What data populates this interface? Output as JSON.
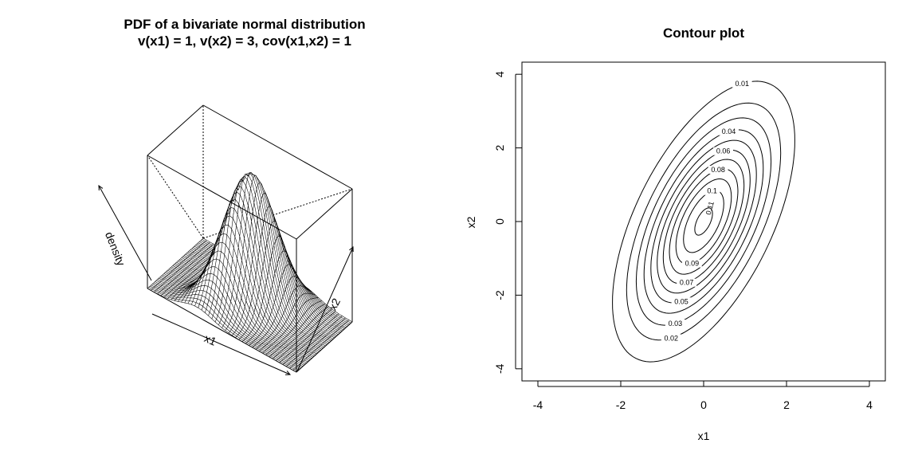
{
  "chart_data": [
    {
      "type": "surface",
      "title_line1": "PDF of a bivariate normal distribution",
      "title_line2": "v(x1) = 1, v(x2) = 3, cov(x1,x2) = 1",
      "xlabel": "x1",
      "ylabel": "x2",
      "zlabel": "density",
      "distribution": {
        "mean": [
          0,
          0
        ],
        "var_x1": 1,
        "var_x2": 3,
        "cov_x1_x2": 1
      },
      "xlim": [
        -4,
        4
      ],
      "ylim": [
        -4,
        4
      ],
      "zlim": [
        0,
        0.113
      ],
      "peak_density": 0.113
    },
    {
      "type": "contour",
      "title": "Contour plot",
      "xlabel": "x1",
      "ylabel": "x2",
      "xlim": [
        -4,
        4
      ],
      "ylim": [
        -4,
        4
      ],
      "xticks": [
        -4,
        -2,
        0,
        2,
        4
      ],
      "yticks": [
        -4,
        -2,
        0,
        2,
        4
      ],
      "levels": [
        0.01,
        0.02,
        0.03,
        0.04,
        0.05,
        0.06,
        0.07,
        0.08,
        0.09,
        0.1,
        0.11
      ],
      "level_labels": [
        "0.01",
        "0.02",
        "0.03",
        "0.04",
        "0.05",
        "0.06",
        "0.07",
        "0.08",
        "0.09",
        "0.1",
        "0.11"
      ]
    }
  ]
}
